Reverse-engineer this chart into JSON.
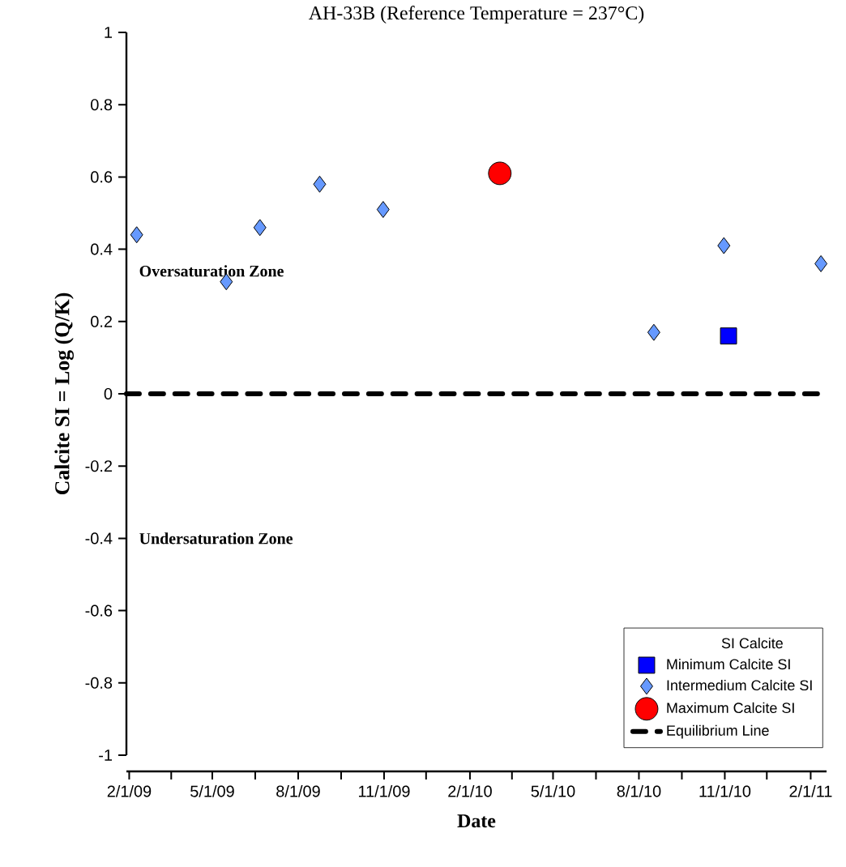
{
  "chart_data": {
    "type": "scatter",
    "title": "AH-33B (Reference Temperature = 237°C)",
    "xlabel": "Date",
    "ylabel": "Calcite SI = Log (Q/K)",
    "legend_title": "SI Calcite",
    "annotations": [
      "Oversaturation Zone",
      "Undersaturation Zone"
    ],
    "xlim": [
      "2009-01-29",
      "2011-02-18"
    ],
    "ylim": [
      -1,
      1
    ],
    "xticks": [
      {
        "value": "2009-02-01",
        "label": "2/1/09"
      },
      {
        "value": "2009-03-18",
        "label": null
      },
      {
        "value": "2009-05-01",
        "label": "5/1/09"
      },
      {
        "value": "2009-06-16",
        "label": null
      },
      {
        "value": "2009-08-01",
        "label": "8/1/09"
      },
      {
        "value": "2009-09-16",
        "label": null
      },
      {
        "value": "2009-11-01",
        "label": "11/1/09"
      },
      {
        "value": "2009-12-16",
        "label": null
      },
      {
        "value": "2010-02-01",
        "label": "2/1/10"
      },
      {
        "value": "2010-03-18",
        "label": null
      },
      {
        "value": "2010-05-01",
        "label": "5/1/10"
      },
      {
        "value": "2010-06-16",
        "label": null
      },
      {
        "value": "2010-08-01",
        "label": "8/1/10"
      },
      {
        "value": "2010-09-16",
        "label": null
      },
      {
        "value": "2010-11-01",
        "label": "11/1/10"
      },
      {
        "value": "2010-12-16",
        "label": null
      },
      {
        "value": "2011-02-01",
        "label": "2/1/11"
      }
    ],
    "yticks": [
      -1,
      -0.8,
      -0.6,
      -0.4,
      -0.2,
      0,
      0.2,
      0.4,
      0.6,
      0.8,
      1
    ],
    "grid": false,
    "legend": "bottom right",
    "series": [
      {
        "name": "Minimum Calcite SI",
        "color": "#0000ff",
        "marker": "square",
        "x": [
          "2010-11-05"
        ],
        "values": [
          0.16
        ]
      },
      {
        "name": "Intermedium Calcite SI",
        "color": "#6699ff",
        "marker": "diamond",
        "x": [
          "2009-02-09",
          "2009-05-16",
          "2009-06-21",
          "2009-08-24",
          "2009-10-31",
          "2010-08-17",
          "2010-10-31",
          "2011-02-12"
        ],
        "values": [
          0.44,
          0.31,
          0.46,
          0.58,
          0.51,
          0.17,
          0.41,
          0.36
        ]
      },
      {
        "name": "Maximum Calcite SI",
        "color": "#ff0000",
        "marker": "circle",
        "x": [
          "2010-03-05"
        ],
        "values": [
          0.61
        ]
      },
      {
        "name": "Equilibrium Line",
        "type": "line",
        "color": "#000000",
        "marker": "none",
        "line_style": "dashed",
        "x": [
          "2009-01-29",
          "2011-02-18"
        ],
        "values": [
          0,
          0
        ]
      }
    ]
  }
}
